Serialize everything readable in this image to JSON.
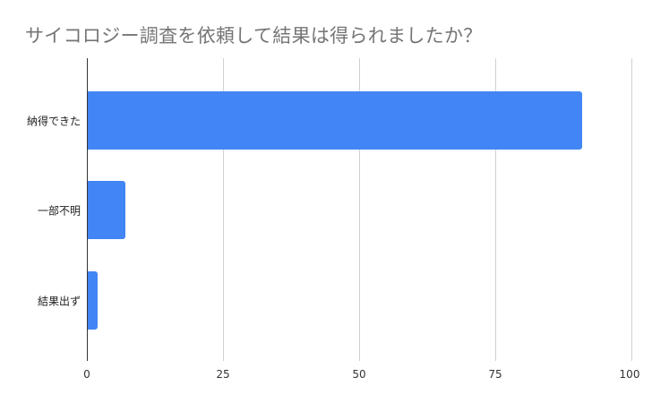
{
  "chart_data": {
    "type": "bar",
    "orientation": "horizontal",
    "title": "サイコロジー調査を依頼して結果は得られましたか？",
    "xlabel": "",
    "ylabel": "",
    "categories": [
      "納得できた",
      "一部不明",
      "結果出ず"
    ],
    "values": [
      91,
      7,
      2
    ],
    "xlim": [
      0,
      100
    ],
    "xticks": [
      "0",
      "25",
      "50",
      "75",
      "100"
    ],
    "grid": true,
    "legend": null,
    "bar_color": "#4285f4"
  }
}
